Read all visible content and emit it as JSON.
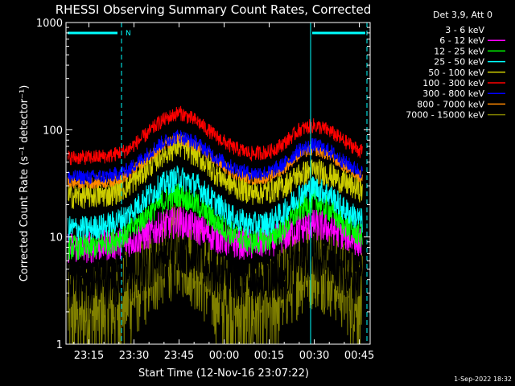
{
  "chart_data": {
    "type": "line",
    "title": "RHESSI Observing Summary Count Rates, Corrected",
    "xlabel": "Start Time (12-Nov-16 23:07:22)",
    "ylabel": "Corrected Count Rate (s⁻¹ detector⁻¹)",
    "yscale": "log",
    "ylim": [
      1,
      1000
    ],
    "xlim_minutes_after_23_00": [
      7.37,
      108.6
    ],
    "x_ticks": [
      {
        "label": "23:15",
        "minutes": 15
      },
      {
        "label": "23:30",
        "minutes": 30
      },
      {
        "label": "23:45",
        "minutes": 45
      },
      {
        "label": "00:00",
        "minutes": 60
      },
      {
        "label": "00:15",
        "minutes": 75
      },
      {
        "label": "00:30",
        "minutes": 90
      },
      {
        "label": "00:45",
        "minutes": 105
      }
    ],
    "y_ticks": [
      {
        "label": "1",
        "value": 1
      },
      {
        "label": "10",
        "value": 10
      },
      {
        "label": "100",
        "value": 100
      },
      {
        "label": "1000",
        "value": 1000
      }
    ],
    "legend_title": "Det 3,9, Att 0",
    "legend_placement": "right",
    "x": [
      8,
      15,
      22,
      28,
      33,
      39,
      45,
      51,
      57,
      63,
      69,
      75,
      80,
      85,
      90,
      95,
      100,
      106
    ],
    "series": [
      {
        "name": "3 - 6 keV",
        "color": "#000000",
        "values": [
          3.6,
          3.6,
          3.7,
          4.0,
          5.0,
          7.0,
          8.5,
          6.5,
          4.5,
          3.8,
          3.6,
          3.8,
          4.5,
          6.0,
          7.0,
          6.0,
          4.8,
          3.8
        ]
      },
      {
        "name": "6 - 12 keV",
        "color": "#ff00ff",
        "values": [
          8.0,
          8.0,
          8.5,
          9.0,
          10.0,
          12.5,
          14.0,
          12.0,
          10.0,
          8.8,
          8.5,
          9.0,
          10.0,
          12.0,
          13.0,
          12.0,
          10.5,
          8.8
        ]
      },
      {
        "name": "12 - 25 keV",
        "color": "#00ff00",
        "values": [
          8.0,
          8.0,
          9.0,
          11.0,
          15.0,
          21.0,
          25.0,
          20.0,
          14.0,
          10.5,
          9.0,
          9.5,
          12.0,
          18.0,
          22.0,
          18.0,
          13.0,
          10.0
        ]
      },
      {
        "name": "25 - 50 keV",
        "color": "#00ffff",
        "values": [
          12.0,
          12.0,
          13.0,
          16.0,
          22.0,
          30.0,
          36.0,
          30.0,
          21.0,
          15.0,
          13.0,
          13.5,
          17.0,
          25.0,
          29.0,
          25.0,
          18.0,
          14.0
        ]
      },
      {
        "name": "50 - 100 keV",
        "color": "#cccc00",
        "values": [
          24.0,
          24.0,
          25.0,
          30.0,
          40.0,
          58.0,
          72.0,
          58.0,
          40.0,
          30.0,
          26.0,
          26.5,
          30.0,
          38.0,
          42.0,
          38.0,
          32.0,
          27.0
        ]
      },
      {
        "name": "100 - 300 keV",
        "color": "#ff0000",
        "values": [
          55.0,
          55.0,
          57.0,
          65.0,
          85.0,
          120.0,
          145.0,
          120.0,
          88.0,
          68.0,
          60.0,
          62.0,
          75.0,
          100.0,
          110.0,
          98.0,
          78.0,
          62.0
        ]
      },
      {
        "name": "300 - 800 keV",
        "color": "#0000ff",
        "values": [
          36.0,
          36.0,
          37.0,
          42.0,
          55.0,
          75.0,
          88.0,
          75.0,
          56.0,
          44.0,
          39.0,
          40.0,
          48.0,
          65.0,
          72.0,
          64.0,
          50.0,
          40.0
        ]
      },
      {
        "name": "800 - 7000 keV",
        "color": "#ff8800",
        "values": [
          32.0,
          32.0,
          33.0,
          38.0,
          50.0,
          70.0,
          82.0,
          70.0,
          52.0,
          40.0,
          35.0,
          36.0,
          44.0,
          60.0,
          66.0,
          58.0,
          46.0,
          36.0
        ]
      },
      {
        "name": "7000 - 15000 keV",
        "color": "#808000",
        "values": [
          2.0,
          2.0,
          2.2,
          2.8,
          3.8,
          6.0,
          8.0,
          5.5,
          3.0,
          2.2,
          2.0,
          2.2,
          3.5,
          5.0,
          6.0,
          5.0,
          3.5,
          2.5
        ]
      }
    ],
    "annotations": [
      {
        "label": "N",
        "color": "#00ffff"
      }
    ],
    "timestamp": "1-Sep-2022 18:32"
  }
}
